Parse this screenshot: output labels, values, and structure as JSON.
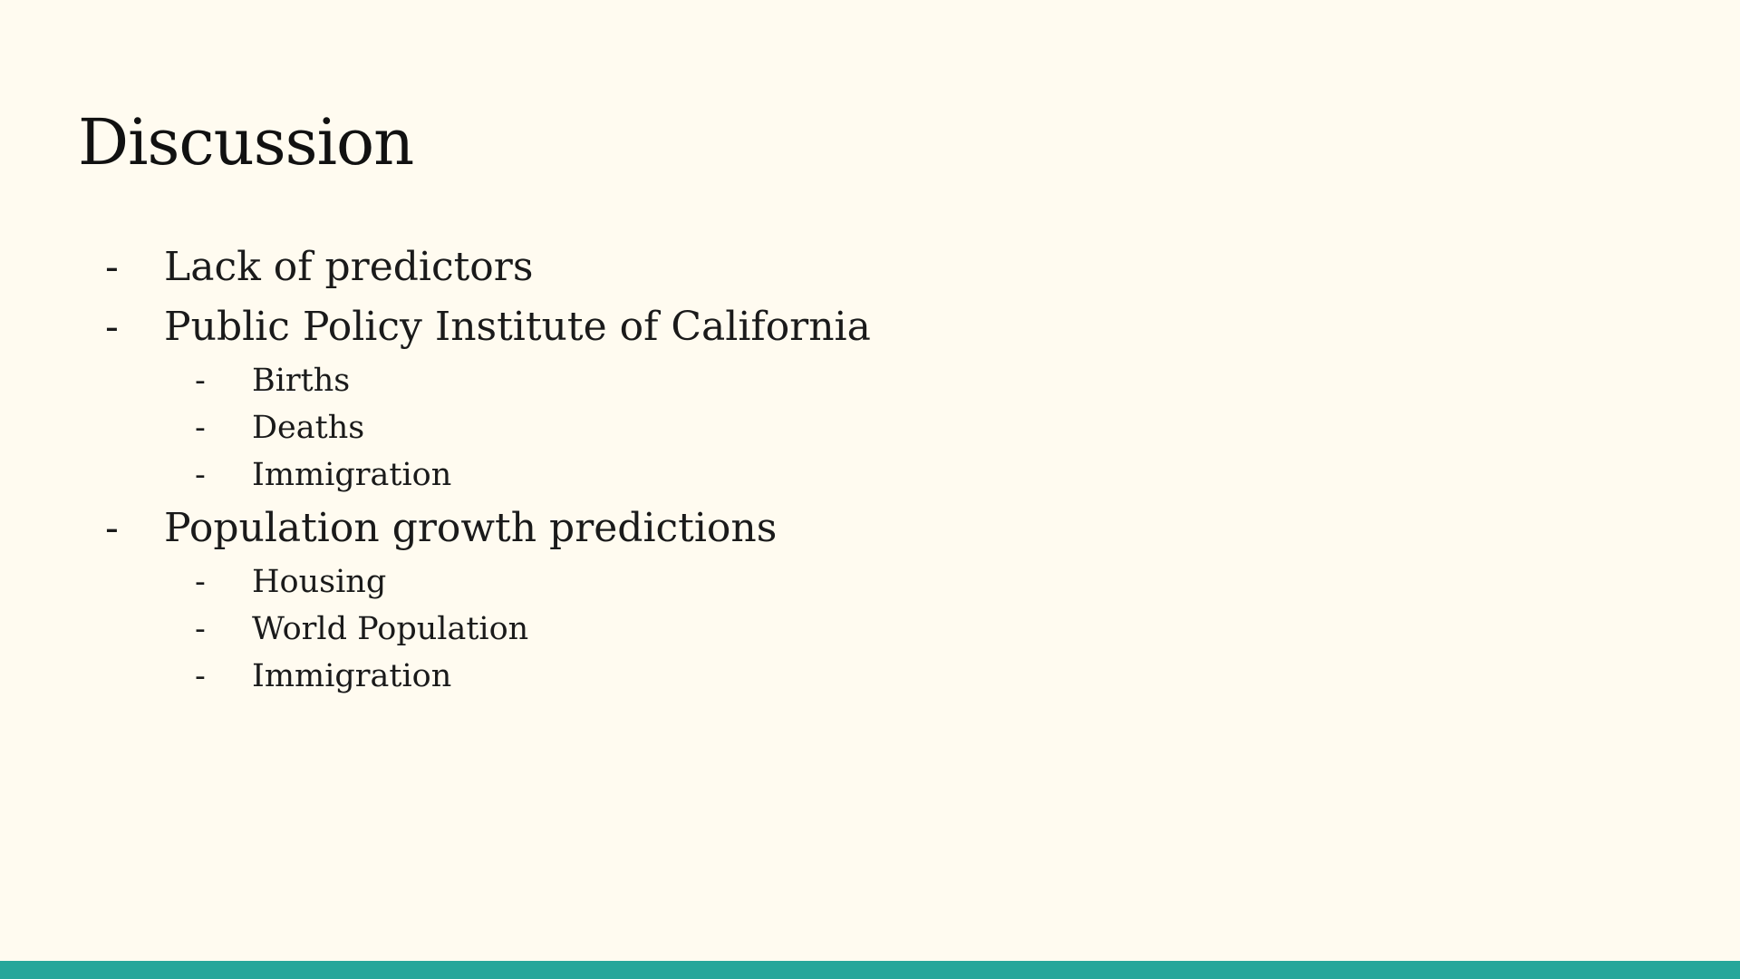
{
  "slide": {
    "title": "Discussion",
    "bullet_marker": "-",
    "bullets": [
      {
        "level": 1,
        "text": "Lack of predictors"
      },
      {
        "level": 1,
        "text": "Public Policy Institute of California"
      },
      {
        "level": 2,
        "text": "Births"
      },
      {
        "level": 2,
        "text": "Deaths"
      },
      {
        "level": 2,
        "text": "Immigration"
      },
      {
        "level": 1,
        "text": "Population growth predictions"
      },
      {
        "level": 2,
        "text": "Housing"
      },
      {
        "level": 2,
        "text": "World Population"
      },
      {
        "level": 2,
        "text": "Immigration"
      }
    ]
  },
  "colors": {
    "background": "#fffbf0",
    "accent_bar": "#26a69a",
    "text": "#1a1a1a"
  }
}
